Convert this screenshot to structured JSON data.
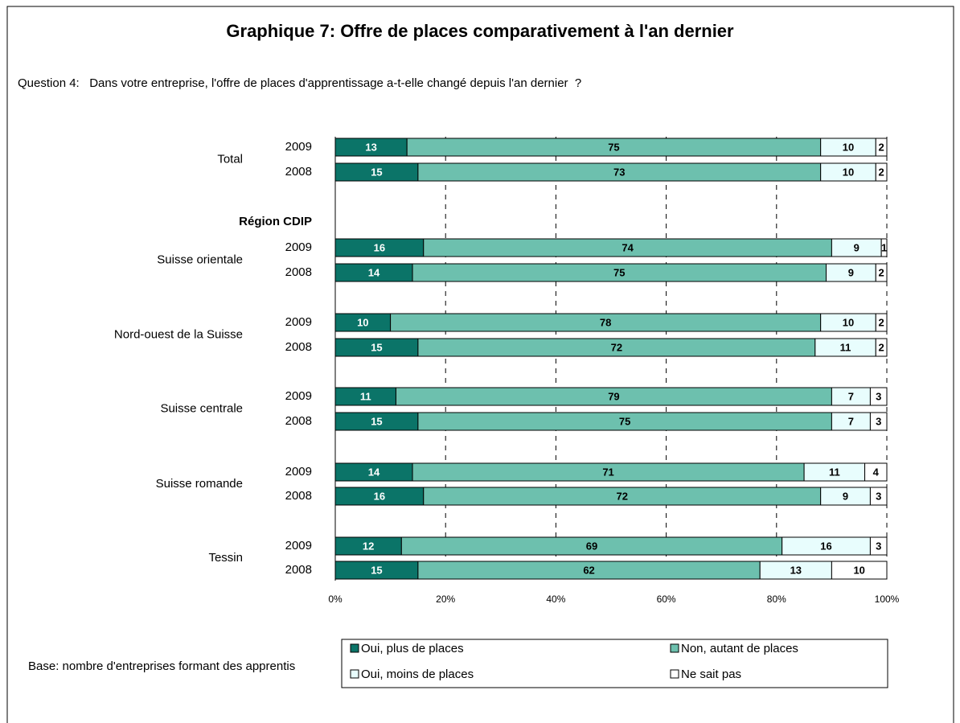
{
  "chart_data": {
    "type": "stacked-bar-horizontal",
    "title": "Graphique 7: Offre de places comparativement à l'an dernier",
    "subtitle": "Question 4:   Dans votre entreprise, l'offre de places d'apprentissage a-t-elle changé depuis l'an dernier  ?",
    "section_label": "Région CDIP",
    "footnote": "Base: nombre d'entreprises formant des apprentis",
    "groups": [
      {
        "label": "Total",
        "categories": [
          "2009",
          "2008"
        ]
      },
      {
        "label": "Suisse orientale",
        "categories": [
          "2009",
          "2008"
        ]
      },
      {
        "label": "Nord-ouest de la Suisse",
        "categories": [
          "2009",
          "2008"
        ]
      },
      {
        "label": "Suisse centrale",
        "categories": [
          "2009",
          "2008"
        ]
      },
      {
        "label": "Suisse romande",
        "categories": [
          "2009",
          "2008"
        ]
      },
      {
        "label": "Tessin",
        "categories": [
          "2009",
          "2008"
        ]
      }
    ],
    "series": [
      {
        "name": "Oui, plus de places",
        "color": "#0b7468",
        "values": [
          13,
          15,
          16,
          14,
          10,
          15,
          11,
          15,
          14,
          16,
          12,
          15
        ]
      },
      {
        "name": "Non, autant de places",
        "color": "#6dc0ae",
        "values": [
          75,
          73,
          74,
          75,
          78,
          72,
          79,
          75,
          71,
          72,
          69,
          62
        ]
      },
      {
        "name": "Oui, moins de places",
        "color": "#e8fdfd",
        "values": [
          10,
          10,
          9,
          9,
          10,
          11,
          7,
          7,
          11,
          9,
          16,
          13
        ]
      },
      {
        "name": "Ne sait pas",
        "color": "#ffffff",
        "values": [
          2,
          2,
          1,
          2,
          2,
          2,
          3,
          3,
          4,
          3,
          3,
          10
        ]
      }
    ],
    "xlim": [
      0,
      100
    ],
    "xticks": [
      {
        "value": 0,
        "label": "0%"
      },
      {
        "value": 20,
        "label": "20%"
      },
      {
        "value": 40,
        "label": "40%"
      },
      {
        "value": 60,
        "label": "60%"
      },
      {
        "value": 80,
        "label": "80%"
      },
      {
        "value": 100,
        "label": "100%"
      }
    ],
    "grid": true
  }
}
